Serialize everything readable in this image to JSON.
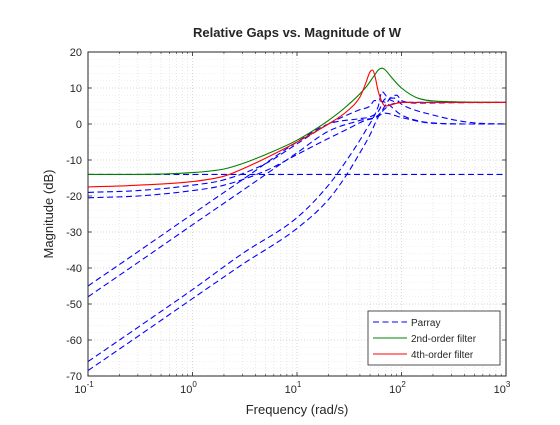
{
  "chart_data": {
    "type": "line",
    "title": "Relative Gaps vs. Magnitude of W",
    "xlabel": "Frequency  (rad/s)",
    "ylabel": "Magnitude (dB)",
    "xscale": "log",
    "xlim": [
      0.1,
      1000
    ],
    "ylim": [
      -70,
      20
    ],
    "grid": true,
    "legend_position": "bottom-right",
    "x_ticks": [
      {
        "value": 0.1,
        "base": "10",
        "exp": "-1"
      },
      {
        "value": 1,
        "base": "10",
        "exp": "0"
      },
      {
        "value": 10,
        "base": "10",
        "exp": "1"
      },
      {
        "value": 100,
        "base": "10",
        "exp": "2"
      },
      {
        "value": 1000,
        "base": "10",
        "exp": "3"
      }
    ],
    "y_ticks": [
      -70,
      -60,
      -50,
      -40,
      -30,
      -20,
      -10,
      0,
      10,
      20
    ],
    "series": [
      {
        "name": "Parray",
        "color": "#0000ff",
        "dash": true,
        "curves": [
          {
            "x": [
              0.1,
              0.3,
              1,
              2,
              5,
              10,
              20,
              50,
              100,
              300,
              1000
            ],
            "y": [
              -14,
              -14,
              -14,
              -14,
              -14,
              -14,
              -14,
              -14,
              -14,
              -14,
              -14
            ]
          },
          {
            "x": [
              0.1,
              0.3,
              1,
              2,
              5,
              10,
              20,
              30,
              45,
              55,
              70,
              100,
              200,
              500,
              1000
            ],
            "y": [
              -20.5,
              -20,
              -18.5,
              -17,
              -13,
              -8.5,
              -4,
              -1.5,
              1,
              1.6,
              3,
              1.8,
              0.2,
              0,
              0
            ]
          },
          {
            "x": [
              0.1,
              0.3,
              1,
              2,
              5,
              10,
              20,
              40,
              50,
              55,
              70,
              100,
              200,
              500,
              1000
            ],
            "y": [
              -19,
              -18.5,
              -17,
              -15.5,
              -11,
              -5.5,
              0,
              4,
              5,
              6.5,
              6,
              2.5,
              0.3,
              0,
              0
            ]
          },
          {
            "x": [
              0.1,
              0.3,
              1,
              3,
              10,
              20,
              40,
              50,
              60,
              70,
              85,
              100,
              200,
              500,
              1000
            ],
            "y": [
              -45,
              -35.5,
              -25,
              -15.5,
              -5,
              0,
              1.5,
              2,
              3.5,
              7,
              7.2,
              5.5,
              2.5,
              0.3,
              0
            ]
          },
          {
            "x": [
              0.1,
              0.3,
              1,
              3,
              10,
              20,
              40,
              60,
              80,
              90,
              100,
              150,
              300,
              1000
            ],
            "y": [
              -48,
              -38.5,
              -28,
              -18.5,
              -8,
              -2,
              1,
              2.5,
              7.5,
              8,
              6.5,
              5.8,
              5.9,
              6
            ]
          },
          {
            "x": [
              0.1,
              0.3,
              1,
              3,
              10,
              20,
              30,
              45,
              60,
              65,
              75,
              100,
              200,
              1000
            ],
            "y": [
              -66,
              -56.5,
              -46,
              -36,
              -26,
              -17,
              -10,
              -2,
              5,
              9,
              7,
              6,
              6,
              6
            ]
          },
          {
            "x": [
              0.1,
              0.3,
              1,
              3,
              10,
              20,
              30,
              40,
              50,
              60,
              75,
              100,
              200,
              1000
            ],
            "y": [
              -68.5,
              -59,
              -48.5,
              -39,
              -29,
              -21,
              -14,
              -8,
              -3,
              2,
              5,
              6,
              6,
              6
            ]
          }
        ]
      },
      {
        "name": "2nd-order filter",
        "color": "#008000",
        "dash": false,
        "curves": [
          {
            "x": [
              0.1,
              0.3,
              1,
              2,
              3,
              5,
              10,
              20,
              30,
              45,
              55,
              60,
              65,
              70,
              80,
              100,
              150,
              300,
              1000
            ],
            "y": [
              -14,
              -14,
              -13.5,
              -12.5,
              -11,
              -8.5,
              -4.5,
              1,
              5,
              10,
              13.5,
              15,
              15.5,
              15,
              13,
              10,
              7,
              6.2,
              6
            ]
          }
        ]
      },
      {
        "name": "4th-order filter",
        "color": "#ff0000",
        "dash": false,
        "curves": [
          {
            "x": [
              0.1,
              0.3,
              1,
              2,
              3,
              5,
              10,
              20,
              30,
              40,
              45,
              50,
              53,
              56,
              60,
              70,
              100,
              300,
              1000
            ],
            "y": [
              -17.5,
              -17,
              -16,
              -14.5,
              -12.5,
              -9.5,
              -5,
              0,
              3.5,
              7.5,
              11,
              14.5,
              15,
              13,
              9,
              5,
              6,
              6,
              6
            ]
          }
        ]
      }
    ]
  }
}
